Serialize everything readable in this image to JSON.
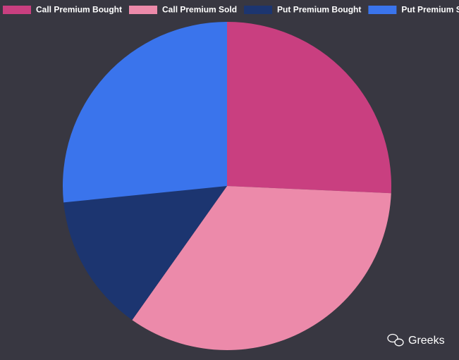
{
  "chart_data": {
    "type": "pie",
    "categories": [
      "Call Premium Bought",
      "Call Premium Sold",
      "Put Premium Bought",
      "Put Premium Sold"
    ],
    "values": [
      25.7,
      34.1,
      13.6,
      26.6
    ],
    "colors": [
      "#c93f80",
      "#ec8aaa",
      "#1c3570",
      "#3a74ec"
    ],
    "legend": "top"
  },
  "watermark": "Greeks"
}
